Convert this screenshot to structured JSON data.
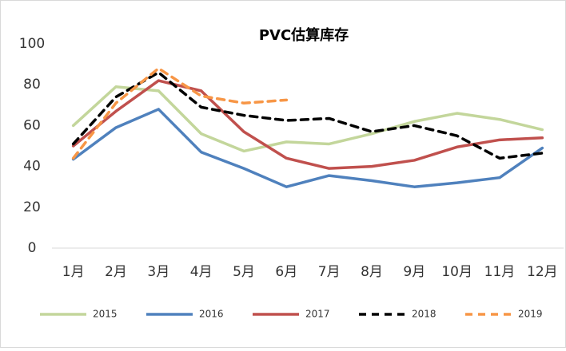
{
  "chart_data": {
    "type": "line",
    "title": "PVC估算库存",
    "categories": [
      "1月",
      "2月",
      "3月",
      "4月",
      "5月",
      "6月",
      "7月",
      "8月",
      "9月",
      "10月",
      "11月",
      "12月"
    ],
    "series": [
      {
        "name": "2015",
        "color": "#c3d69b",
        "dashed": false,
        "values": [
          60,
          79,
          77,
          56,
          47.5,
          52,
          51,
          56,
          62,
          66,
          63,
          58
        ]
      },
      {
        "name": "2016",
        "color": "#4f81bd",
        "dashed": false,
        "values": [
          43.5,
          59,
          68,
          47,
          39,
          30,
          35.5,
          33,
          30,
          32,
          34.5,
          49
        ]
      },
      {
        "name": "2017",
        "color": "#c0504d",
        "dashed": false,
        "values": [
          50,
          67,
          82,
          77,
          57,
          44,
          39,
          40,
          43,
          49.5,
          53,
          54
        ]
      },
      {
        "name": "2018",
        "color": "#000000",
        "dashed": true,
        "values": [
          51,
          74,
          86,
          69,
          65,
          62.5,
          63.5,
          57,
          60,
          55,
          44,
          46.5
        ]
      },
      {
        "name": "2019",
        "color": "#f79646",
        "dashed": true,
        "values": [
          44,
          71,
          88,
          74.5,
          71,
          72.5,
          null,
          null,
          null,
          null,
          null,
          null
        ]
      }
    ],
    "ylim": [
      0,
      100
    ],
    "yticks": [
      0,
      20,
      40,
      60,
      80,
      100
    ],
    "grid": false
  }
}
